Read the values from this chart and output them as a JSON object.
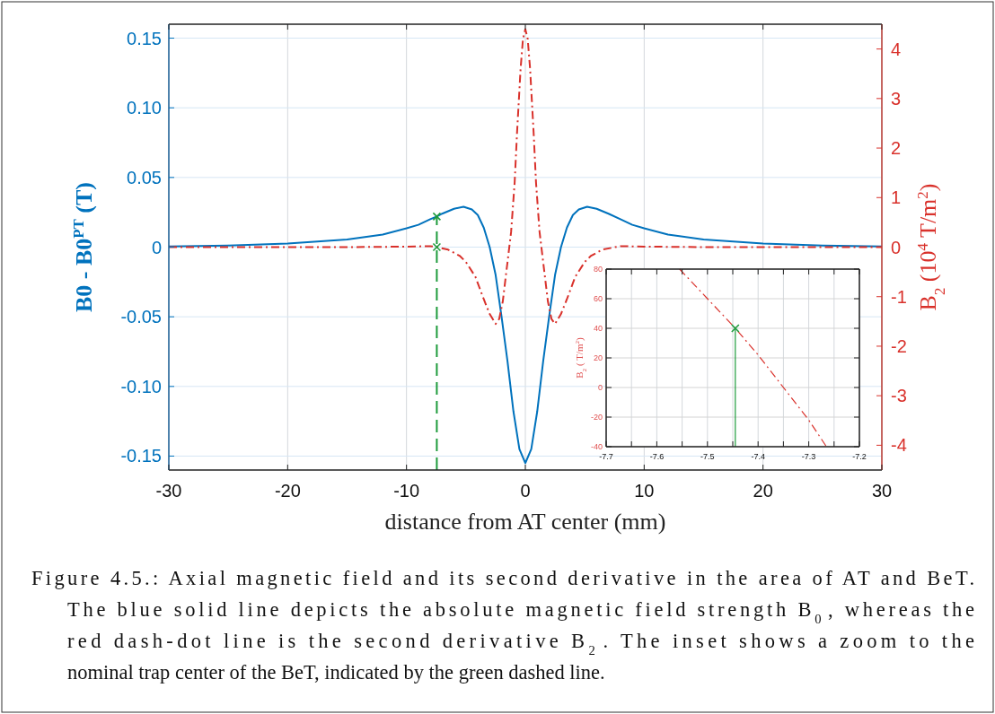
{
  "chart_data": [
    {
      "type": "line",
      "xlabel": "distance from AT center (mm)",
      "ylabel": "B0 - B0$^{PT}$ (T)",
      "y2label": "B$_{2}$ (10$^{4}$ T/m$^{2}$)",
      "xlim": [
        -30,
        30
      ],
      "xticks": [
        -30,
        -20,
        -10,
        0,
        10,
        20,
        30
      ],
      "ylim": [
        -0.16,
        0.16
      ],
      "yticks": [
        {
          "value": -0.15,
          "label": "-0.15"
        },
        {
          "value": -0.1,
          "label": "-0.10"
        },
        {
          "value": -0.05,
          "label": "-0.05"
        },
        0,
        {
          "value": 0.05,
          "label": "0.05"
        },
        {
          "value": 0.1,
          "label": "0.10"
        },
        {
          "value": 0.15,
          "label": "0.15"
        }
      ],
      "y2lim": [
        -4.5,
        4.5
      ],
      "y2ticks": [
        -4,
        -3,
        -2,
        -1,
        0,
        1,
        2,
        3,
        4
      ],
      "grid": true,
      "series": [
        {
          "color": "#0072bd",
          "line_style": "solid",
          "x": [
            -30,
            -25,
            -20,
            -15,
            -12,
            -10,
            -9,
            -8,
            -7.45,
            -7,
            -6,
            -5.2,
            -4.5,
            -4,
            -3.5,
            -3,
            -2.5,
            -2,
            -1.5,
            -1,
            -0.5,
            0,
            0.5,
            1,
            1.5,
            2,
            2.5,
            3,
            3.5,
            4,
            4.5,
            5.2,
            6,
            7,
            8,
            9,
            10,
            12,
            15,
            20,
            25,
            30
          ],
          "values": [
            0.0005,
            0.0012,
            0.0025,
            0.0055,
            0.009,
            0.0135,
            0.016,
            0.02,
            0.022,
            0.024,
            0.0275,
            0.029,
            0.027,
            0.023,
            0.014,
            0,
            -0.02,
            -0.05,
            -0.082,
            -0.118,
            -0.145,
            -0.155,
            -0.145,
            -0.118,
            -0.082,
            -0.05,
            -0.02,
            0,
            0.014,
            0.023,
            0.027,
            0.029,
            0.0275,
            0.024,
            0.02,
            0.016,
            0.0135,
            0.009,
            0.0055,
            0.0025,
            0.0012,
            0.0005
          ]
        },
        {
          "axis": "y2",
          "color": "#d9312b",
          "line_style": "dashdot",
          "x": [
            -30,
            -15,
            -10,
            -8,
            -7.45,
            -6.5,
            -5.5,
            -5,
            -4.2,
            -3.5,
            -3,
            -2.5,
            -2.2,
            -1.9,
            -1.6,
            -1.2,
            -0.9,
            -0.7,
            -0.4,
            -0.2,
            0,
            0.2,
            0.4,
            0.7,
            0.9,
            1.2,
            1.6,
            1.9,
            2.2,
            2.5,
            3,
            3.5,
            4.2,
            5,
            5.5,
            6.5,
            8,
            10,
            15,
            30
          ],
          "values": [
            0,
            0,
            0.01,
            0.02,
            0,
            -0.05,
            -0.18,
            -0.3,
            -0.6,
            -1.05,
            -1.35,
            -1.55,
            -1.45,
            -1.1,
            -0.5,
            0.3,
            1.3,
            2.3,
            3.6,
            4.2,
            4.4,
            4.2,
            3.6,
            2.3,
            1.3,
            0.3,
            -0.5,
            -1.1,
            -1.45,
            -1.55,
            -1.35,
            -1.05,
            -0.6,
            -0.3,
            -0.18,
            -0.05,
            0.02,
            0.01,
            0,
            0
          ]
        },
        {
          "color": "#1e9b3c",
          "line_style": "dashed",
          "x": [
            -7.45,
            -7.45
          ],
          "values": [
            -0.16,
            0.022
          ]
        },
        {
          "type": "scatter",
          "color": "#1e9b3c",
          "marker": "cross",
          "x": [
            -7.45
          ],
          "values": [
            0.022
          ]
        },
        {
          "type": "scatter",
          "axis": "y2",
          "color": "#1e9b3c",
          "marker": "cross",
          "x": [
            -7.45
          ],
          "values": [
            0
          ]
        }
      ],
      "annotations": [
        "Figure 4.5.: Axial magnetic field and its second derivative in the area of AT and BeT.",
        "The blue solid line depicts the absolute magnetic field strength B$_{0}$, whereas the",
        "red dash-dot line is the second derivative B$_{2}$.  The inset shows a zoom to the",
        "nominal trap center of the BeT, indicated by the green dashed line."
      ]
    },
    {
      "type": "line",
      "ylabel": "B$_{2}$ ( T/m$^{2}$)",
      "xlim": [
        -7.7,
        -7.2
      ],
      "xticks": [
        -7.7,
        {
          "value": -7.65,
          "label": null
        },
        -7.6,
        {
          "value": -7.55,
          "label": null
        },
        -7.5,
        {
          "value": -7.45,
          "label": null
        },
        -7.4,
        {
          "value": -7.35,
          "label": null
        },
        -7.3,
        {
          "value": -7.25,
          "label": null
        },
        -7.2
      ],
      "ylim": [
        -40,
        80
      ],
      "yticks": [
        -40,
        -20,
        0,
        20,
        40,
        60,
        80
      ],
      "grid": true,
      "series": [
        {
          "color": "#d9312b",
          "line_style": "dashdot",
          "x": [
            -7.555,
            -7.5,
            -7.445,
            -7.4,
            -7.35,
            -7.3,
            -7.265
          ],
          "values": [
            80,
            60,
            40,
            22,
            0,
            -22,
            -40
          ]
        },
        {
          "color": "#1e9b3c",
          "line_style": "solid",
          "x": [
            -7.445,
            -7.445
          ],
          "values": [
            -40,
            40
          ]
        },
        {
          "type": "scatter",
          "color": "#1e9b3c",
          "marker": "cross",
          "x": [
            -7.445
          ],
          "values": [
            40
          ]
        }
      ]
    }
  ]
}
